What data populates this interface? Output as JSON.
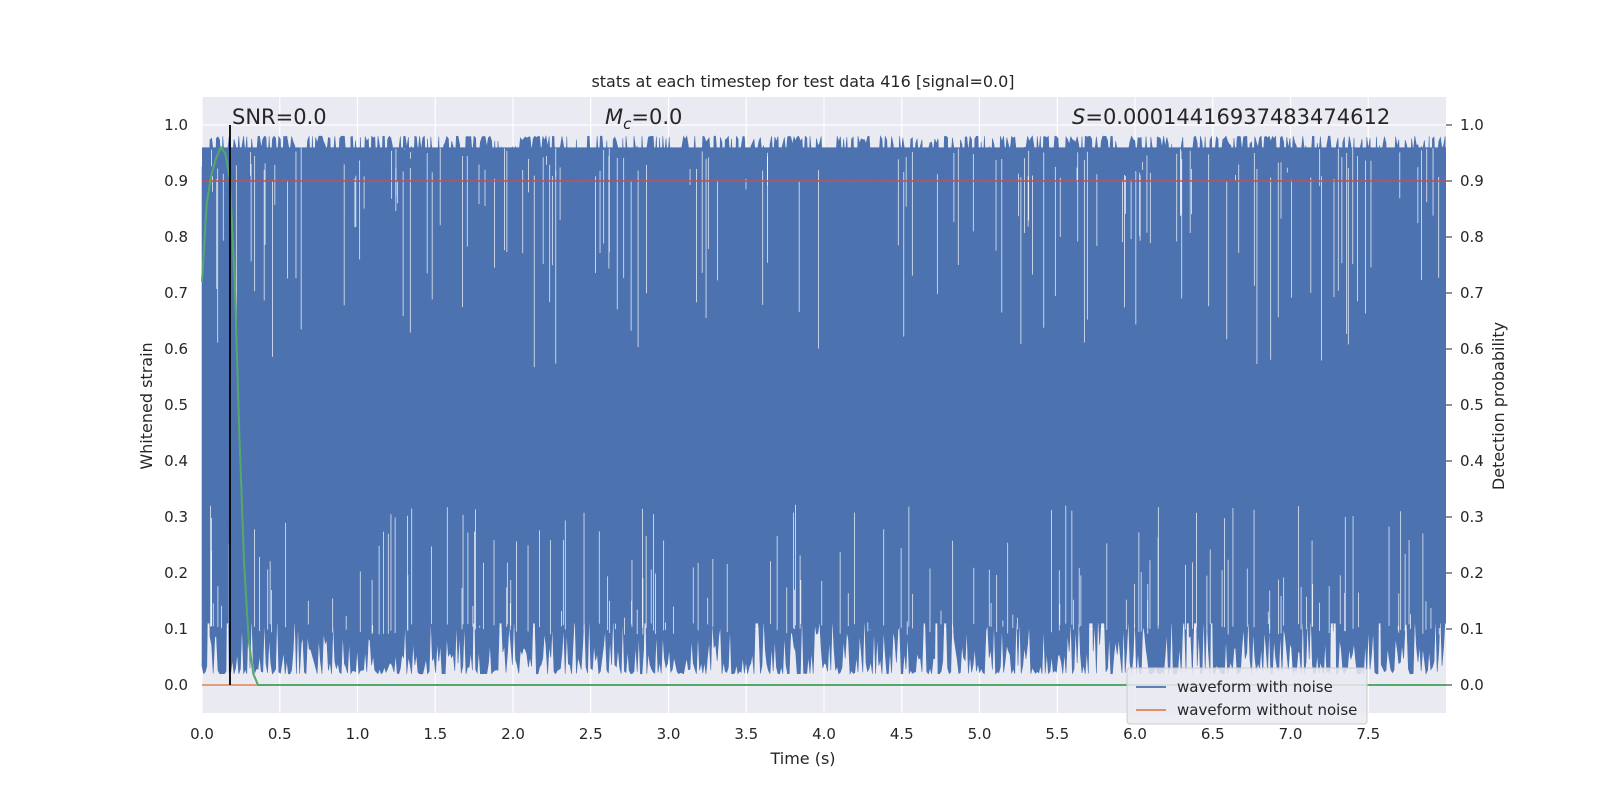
{
  "chart_data": {
    "type": "line",
    "title": "stats at each timestep for test data 416 [signal=0.0]",
    "xlabel": "Time (s)",
    "ylabel_left": "Whitened strain",
    "ylabel_right": "Detection probability",
    "xlim": [
      0,
      8
    ],
    "ylim": [
      -0.05,
      1.05
    ],
    "x_ticks": [
      "0.0",
      "0.5",
      "1.0",
      "1.5",
      "2.0",
      "2.5",
      "3.0",
      "3.5",
      "4.0",
      "4.5",
      "5.0",
      "5.5",
      "6.0",
      "6.5",
      "7.0",
      "7.5"
    ],
    "x_tick_values": [
      0.0,
      0.5,
      1.0,
      1.5,
      2.0,
      2.5,
      3.0,
      3.5,
      4.0,
      4.5,
      5.0,
      5.5,
      6.0,
      6.5,
      7.0,
      7.5
    ],
    "y_ticks": [
      "0.0",
      "0.1",
      "0.2",
      "0.3",
      "0.4",
      "0.5",
      "0.6",
      "0.7",
      "0.8",
      "0.9",
      "1.0"
    ],
    "y_tick_values": [
      0.0,
      0.1,
      0.2,
      0.3,
      0.4,
      0.5,
      0.6,
      0.7,
      0.8,
      0.9,
      1.0
    ],
    "annotations": {
      "snr_prefix": "SNR=",
      "snr_value": "0.0",
      "mc_value": "=0.0",
      "s_value": "=0.00014416937483474612"
    },
    "threshold": 0.9,
    "marker_time": 0.18,
    "series": [
      {
        "name": "waveform with noise",
        "color": "#4c72b0",
        "description": "dense noisy strain filling roughly 0.05 to 0.98",
        "band_low_approx": 0.05,
        "band_high_approx": 0.98
      },
      {
        "name": "waveform without noise",
        "color": "#dd8452",
        "values_constant": 0.0
      },
      {
        "name": "detection probability",
        "color": "#55a868",
        "x": [
          0.0,
          0.03,
          0.06,
          0.09,
          0.12,
          0.15,
          0.18,
          0.21,
          0.24,
          0.27,
          0.3,
          0.33,
          0.36,
          0.4,
          0.5,
          1.0,
          2.0,
          3.0,
          4.0,
          5.0,
          6.0,
          7.0,
          8.0
        ],
        "y": [
          0.72,
          0.86,
          0.91,
          0.94,
          0.96,
          0.95,
          0.9,
          0.72,
          0.45,
          0.22,
          0.08,
          0.02,
          0.0,
          0.0,
          0.0,
          0.0,
          0.0,
          0.0,
          0.0,
          0.0,
          0.0,
          0.0,
          0.0
        ]
      }
    ],
    "threshold_color": "#c44e52",
    "marker_color": "#000000",
    "legend": {
      "position": "lower-right",
      "entries": [
        "waveform with noise",
        "waveform without noise"
      ]
    }
  }
}
